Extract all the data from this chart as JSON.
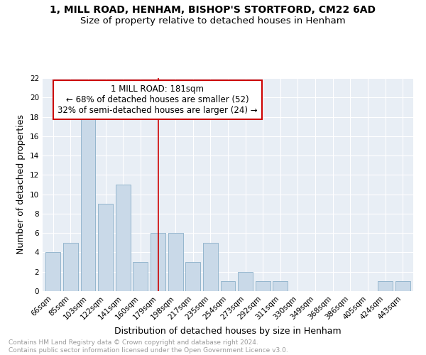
{
  "title1": "1, MILL ROAD, HENHAM, BISHOP'S STORTFORD, CM22 6AD",
  "title2": "Size of property relative to detached houses in Henham",
  "xlabel": "Distribution of detached houses by size in Henham",
  "ylabel": "Number of detached properties",
  "categories": [
    "66sqm",
    "85sqm",
    "103sqm",
    "122sqm",
    "141sqm",
    "160sqm",
    "179sqm",
    "198sqm",
    "217sqm",
    "235sqm",
    "254sqm",
    "273sqm",
    "292sqm",
    "311sqm",
    "330sqm",
    "349sqm",
    "368sqm",
    "386sqm",
    "405sqm",
    "424sqm",
    "443sqm"
  ],
  "values": [
    4,
    5,
    18,
    9,
    11,
    3,
    6,
    6,
    3,
    5,
    1,
    2,
    1,
    1,
    0,
    0,
    0,
    0,
    0,
    1,
    1
  ],
  "bar_color": "#c9d9e8",
  "bar_edge_color": "#8aafc8",
  "highlight_index": 6,
  "highlight_color": "#cc0000",
  "annotation_text": "1 MILL ROAD: 181sqm\n← 68% of detached houses are smaller (52)\n32% of semi-detached houses are larger (24) →",
  "annotation_box_color": "#ffffff",
  "annotation_box_edge": "#cc0000",
  "ylim": [
    0,
    22
  ],
  "yticks": [
    0,
    2,
    4,
    6,
    8,
    10,
    12,
    14,
    16,
    18,
    20,
    22
  ],
  "footnote": "Contains HM Land Registry data © Crown copyright and database right 2024.\nContains public sector information licensed under the Open Government Licence v3.0.",
  "bg_color": "#e8eef5",
  "title1_fontsize": 10,
  "title2_fontsize": 9.5,
  "xlabel_fontsize": 9,
  "ylabel_fontsize": 9,
  "tick_fontsize": 7.5,
  "annotation_fontsize": 8.5,
  "footnote_fontsize": 6.5,
  "footnote_color": "#999999"
}
